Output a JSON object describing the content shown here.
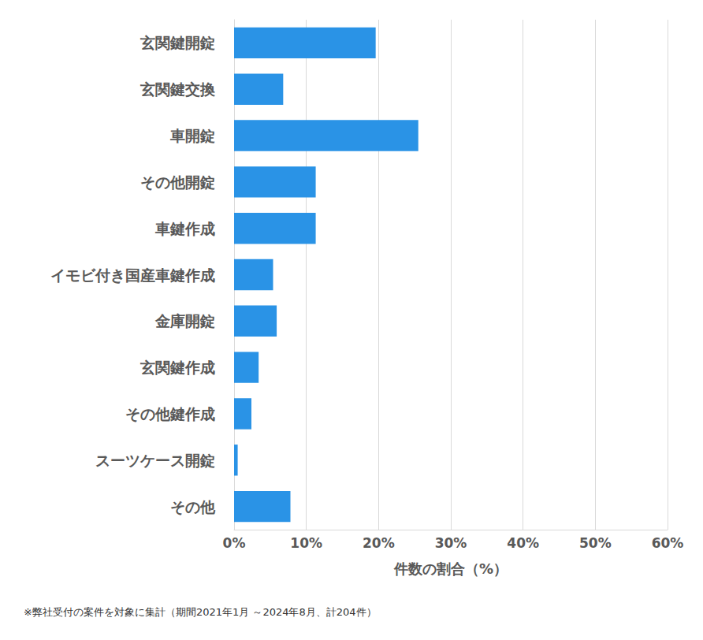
{
  "chart_data": {
    "type": "bar",
    "orientation": "horizontal",
    "categories": [
      "玄関鍵開錠",
      "玄関鍵交換",
      "車開錠",
      "その他開錠",
      "車鍵作成",
      "イモビ付き国産車鍵作成",
      "金庫開錠",
      "玄関鍵作成",
      "その他鍵作成",
      "スーツケース開錠",
      "その他"
    ],
    "values": [
      19.6,
      6.8,
      25.5,
      11.3,
      11.3,
      5.4,
      5.9,
      3.4,
      2.4,
      0.5,
      7.8
    ],
    "color": "#2a93e6",
    "x_label": "件数の割合（%）",
    "xlim": [
      0,
      60
    ],
    "xticks": [
      {
        "value": 0,
        "label": "0%"
      },
      {
        "value": 10,
        "label": "10%"
      },
      {
        "value": 20,
        "label": "20%"
      },
      {
        "value": 30,
        "label": "30%"
      },
      {
        "value": 40,
        "label": "40%"
      },
      {
        "value": 50,
        "label": "50%"
      },
      {
        "value": 60,
        "label": "60%"
      }
    ],
    "grid": true,
    "annotation": "※弊社受付の案件を対象に集計（期間2021年1月 ～2024年8月、計204件）"
  }
}
